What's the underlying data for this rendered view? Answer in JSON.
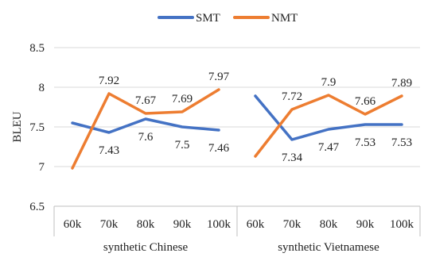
{
  "chart_data": {
    "type": "line",
    "ylabel": "BLEU",
    "ylim": [
      6.5,
      8.5
    ],
    "yticks": [
      "6.5",
      "7",
      "7.5",
      "8",
      "8.5"
    ],
    "y_tick_values": [
      6.5,
      7,
      7.5,
      8,
      8.5
    ],
    "grid": true,
    "legend_position": "top-center",
    "groups": [
      {
        "label": "synthetic Chinese",
        "categories": [
          "60k",
          "70k",
          "80k",
          "90k",
          "100k"
        ]
      },
      {
        "label": "synthetic Vietnamese",
        "categories": [
          "60k",
          "70k",
          "80k",
          "90k",
          "100k"
        ]
      }
    ],
    "series": [
      {
        "name": "SMT",
        "color": "#4472C4",
        "groups": [
          {
            "values": [
              7.55,
              7.43,
              7.6,
              7.5,
              7.46
            ],
            "labels": [
              "",
              "7.43",
              "7.6",
              "7.5",
              "7.46"
            ]
          },
          {
            "values": [
              7.89,
              7.34,
              7.47,
              7.53,
              7.53
            ],
            "labels": [
              "",
              "7.34",
              "7.47",
              "7.53",
              "7.53"
            ]
          }
        ]
      },
      {
        "name": "NMT",
        "color": "#ED7D31",
        "groups": [
          {
            "values": [
              6.98,
              7.92,
              7.67,
              7.69,
              7.97
            ],
            "labels": [
              "",
              "7.92",
              "7.67",
              "7.69",
              "7.97"
            ]
          },
          {
            "values": [
              7.13,
              7.72,
              7.9,
              7.66,
              7.89
            ],
            "labels": [
              "",
              "7.72",
              "7.9",
              "7.66",
              "7.89"
            ]
          }
        ]
      }
    ]
  }
}
